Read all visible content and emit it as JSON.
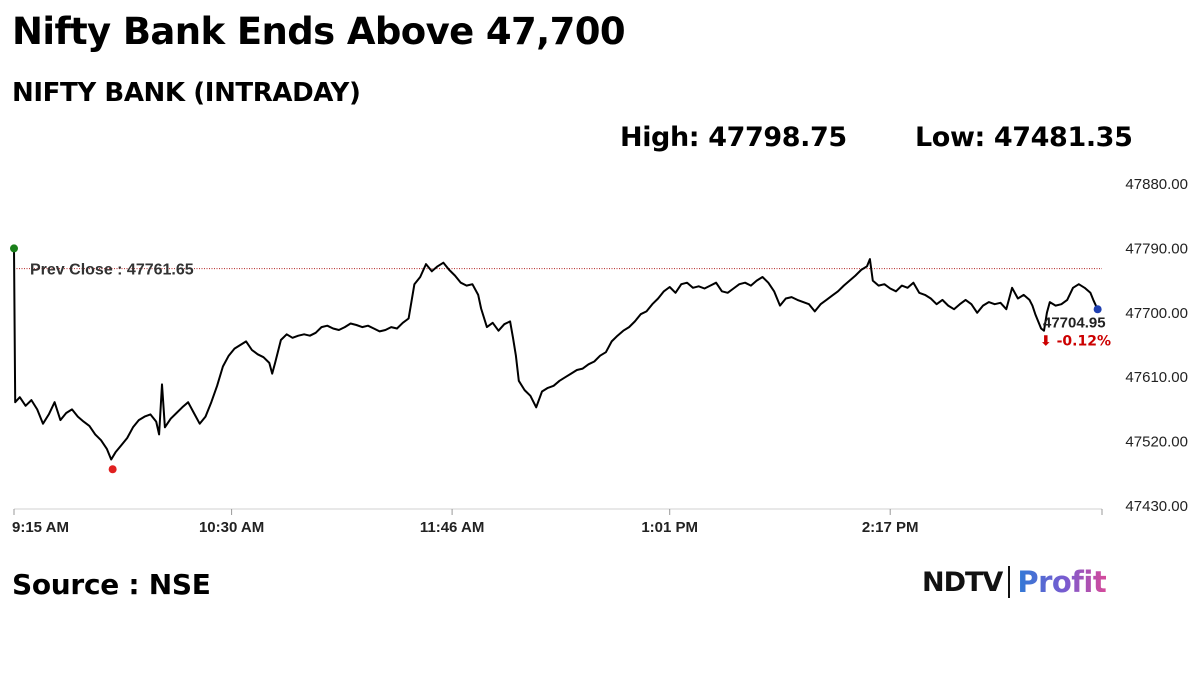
{
  "headline": "Nifty Bank Ends Above 47,700",
  "subtitle": "NIFTY BANK (INTRADAY)",
  "stats": {
    "high": "High: 47798.75",
    "low": "Low: 47481.35"
  },
  "source": "Source : NSE",
  "logo": {
    "ndtv": "NDTV",
    "profit": "Profit"
  },
  "colors": {
    "line": "#000000",
    "prev_close": "#b22222",
    "open_marker": "#1a7f1a",
    "low_marker": "#e02020",
    "close_marker": "#1f3fb0",
    "change_negative": "#cc0000"
  },
  "chart_data": {
    "type": "line",
    "title": "",
    "xlabel": "",
    "ylabel": "",
    "x_ticks": [
      "9:15 AM",
      "10:30 AM",
      "11:46 AM",
      "1:01 PM",
      "2:17 PM"
    ],
    "x_tick_minutes": [
      555,
      630,
      706,
      781,
      857
    ],
    "x_range_minutes": [
      555,
      930
    ],
    "y_ticks": [
      "47880.00",
      "47790.00",
      "47700.00",
      "47610.00",
      "47520.00",
      "47430.00"
    ],
    "ylim": [
      47430,
      47880
    ],
    "grid": false,
    "prev_close": {
      "label": "Prev Close : 47761.65",
      "value": 47761.65
    },
    "last": {
      "value_label": "47704.95",
      "change_label": "⬇ -0.12%",
      "value": 47704.95
    },
    "series": [
      {
        "points": [
          [
            555,
            47790
          ],
          [
            555.4,
            47575
          ],
          [
            557,
            47582
          ],
          [
            559,
            47570
          ],
          [
            561,
            47578
          ],
          [
            563,
            47565
          ],
          [
            565,
            47545
          ],
          [
            567,
            47558
          ],
          [
            569,
            47575
          ],
          [
            571,
            47550
          ],
          [
            573,
            47560
          ],
          [
            575,
            47565
          ],
          [
            577,
            47555
          ],
          [
            579,
            47548
          ],
          [
            581,
            47542
          ],
          [
            583,
            47530
          ],
          [
            585,
            47522
          ],
          [
            587,
            47510
          ],
          [
            588.5,
            47495
          ],
          [
            590,
            47505
          ],
          [
            592,
            47515
          ],
          [
            594,
            47525
          ],
          [
            596,
            47540
          ],
          [
            598,
            47550
          ],
          [
            600,
            47555
          ],
          [
            602,
            47558
          ],
          [
            604,
            47548
          ],
          [
            605,
            47530
          ],
          [
            606,
            47600
          ],
          [
            607,
            47540
          ],
          [
            609,
            47552
          ],
          [
            611,
            47560
          ],
          [
            613,
            47568
          ],
          [
            615,
            47575
          ],
          [
            617,
            47560
          ],
          [
            619,
            47545
          ],
          [
            621,
            47555
          ],
          [
            623,
            47575
          ],
          [
            625,
            47598
          ],
          [
            627,
            47625
          ],
          [
            629,
            47640
          ],
          [
            631,
            47650
          ],
          [
            633,
            47655
          ],
          [
            635,
            47660
          ],
          [
            637,
            47648
          ],
          [
            639,
            47642
          ],
          [
            641,
            47638
          ],
          [
            643,
            47630
          ],
          [
            644,
            47615
          ],
          [
            645,
            47630
          ],
          [
            647,
            47662
          ],
          [
            649,
            47670
          ],
          [
            651,
            47665
          ],
          [
            653,
            47668
          ],
          [
            655,
            47670
          ],
          [
            657,
            47668
          ],
          [
            659,
            47672
          ],
          [
            661,
            47680
          ],
          [
            663,
            47682
          ],
          [
            665,
            47678
          ],
          [
            667,
            47676
          ],
          [
            669,
            47680
          ],
          [
            671,
            47685
          ],
          [
            673,
            47683
          ],
          [
            675,
            47680
          ],
          [
            677,
            47682
          ],
          [
            679,
            47678
          ],
          [
            681,
            47674
          ],
          [
            683,
            47676
          ],
          [
            685,
            47680
          ],
          [
            687,
            47678
          ],
          [
            689,
            47686
          ],
          [
            691,
            47692
          ],
          [
            693,
            47740
          ],
          [
            695,
            47750
          ],
          [
            697,
            47768
          ],
          [
            699,
            47758
          ],
          [
            701,
            47765
          ],
          [
            703,
            47770
          ],
          [
            705,
            47760
          ],
          [
            707,
            47752
          ],
          [
            709,
            47742
          ],
          [
            711,
            47738
          ],
          [
            713,
            47740
          ],
          [
            715,
            47725
          ],
          [
            716,
            47706
          ],
          [
            718,
            47680
          ],
          [
            720,
            47686
          ],
          [
            722,
            47675
          ],
          [
            724,
            47684
          ],
          [
            726,
            47688
          ],
          [
            727,
            47665
          ],
          [
            728,
            47640
          ],
          [
            729,
            47605
          ],
          [
            731,
            47592
          ],
          [
            733,
            47584
          ],
          [
            735,
            47568
          ],
          [
            737,
            47590
          ],
          [
            739,
            47595
          ],
          [
            741,
            47598
          ],
          [
            743,
            47605
          ],
          [
            745,
            47610
          ],
          [
            747,
            47615
          ],
          [
            749,
            47620
          ],
          [
            751,
            47622
          ],
          [
            753,
            47628
          ],
          [
            755,
            47632
          ],
          [
            757,
            47640
          ],
          [
            759,
            47645
          ],
          [
            761,
            47660
          ],
          [
            763,
            47668
          ],
          [
            765,
            47675
          ],
          [
            767,
            47680
          ],
          [
            769,
            47688
          ],
          [
            771,
            47698
          ],
          [
            773,
            47702
          ],
          [
            775,
            47712
          ],
          [
            777,
            47720
          ],
          [
            779,
            47730
          ],
          [
            781,
            47736
          ],
          [
            783,
            47728
          ],
          [
            785,
            47740
          ],
          [
            787,
            47742
          ],
          [
            789,
            47735
          ],
          [
            791,
            47737
          ],
          [
            793,
            47734
          ],
          [
            795,
            47738
          ],
          [
            797,
            47742
          ],
          [
            799,
            47730
          ],
          [
            801,
            47728
          ],
          [
            803,
            47734
          ],
          [
            805,
            47740
          ],
          [
            807,
            47742
          ],
          [
            809,
            47738
          ],
          [
            811,
            47745
          ],
          [
            813,
            47750
          ],
          [
            815,
            47742
          ],
          [
            817,
            47730
          ],
          [
            819,
            47710
          ],
          [
            821,
            47720
          ],
          [
            823,
            47722
          ],
          [
            825,
            47718
          ],
          [
            827,
            47715
          ],
          [
            829,
            47712
          ],
          [
            831,
            47702
          ],
          [
            833,
            47712
          ],
          [
            835,
            47718
          ],
          [
            837,
            47724
          ],
          [
            839,
            47730
          ],
          [
            841,
            47738
          ],
          [
            843,
            47745
          ],
          [
            845,
            47752
          ],
          [
            847,
            47760
          ],
          [
            849,
            47765
          ],
          [
            850,
            47775
          ],
          [
            851,
            47745
          ],
          [
            853,
            47738
          ],
          [
            855,
            47740
          ],
          [
            857,
            47734
          ],
          [
            859,
            47730
          ],
          [
            861,
            47738
          ],
          [
            863,
            47735
          ],
          [
            865,
            47742
          ],
          [
            867,
            47728
          ],
          [
            869,
            47725
          ],
          [
            871,
            47720
          ],
          [
            873,
            47712
          ],
          [
            875,
            47718
          ],
          [
            877,
            47710
          ],
          [
            879,
            47705
          ],
          [
            881,
            47712
          ],
          [
            883,
            47718
          ],
          [
            885,
            47712
          ],
          [
            887,
            47700
          ],
          [
            889,
            47710
          ],
          [
            891,
            47715
          ],
          [
            893,
            47712
          ],
          [
            895,
            47714
          ],
          [
            897,
            47705
          ],
          [
            899,
            47735
          ],
          [
            901,
            47720
          ],
          [
            903,
            47725
          ],
          [
            905,
            47718
          ],
          [
            906,
            47710
          ],
          [
            907,
            47698
          ],
          [
            908,
            47688
          ],
          [
            909,
            47678
          ],
          [
            910,
            47675
          ],
          [
            911,
            47700
          ],
          [
            912,
            47715
          ],
          [
            914,
            47710
          ],
          [
            916,
            47712
          ],
          [
            918,
            47718
          ],
          [
            920,
            47735
          ],
          [
            922,
            47740
          ],
          [
            924,
            47735
          ],
          [
            926,
            47728
          ],
          [
            927,
            47718
          ],
          [
            928.5,
            47704.95
          ]
        ]
      }
    ],
    "markers": [
      {
        "name": "open",
        "x": 555,
        "y": 47790
      },
      {
        "name": "low",
        "x": 589,
        "y": 47481.35
      },
      {
        "name": "close",
        "x": 928.5,
        "y": 47704.95
      }
    ]
  }
}
